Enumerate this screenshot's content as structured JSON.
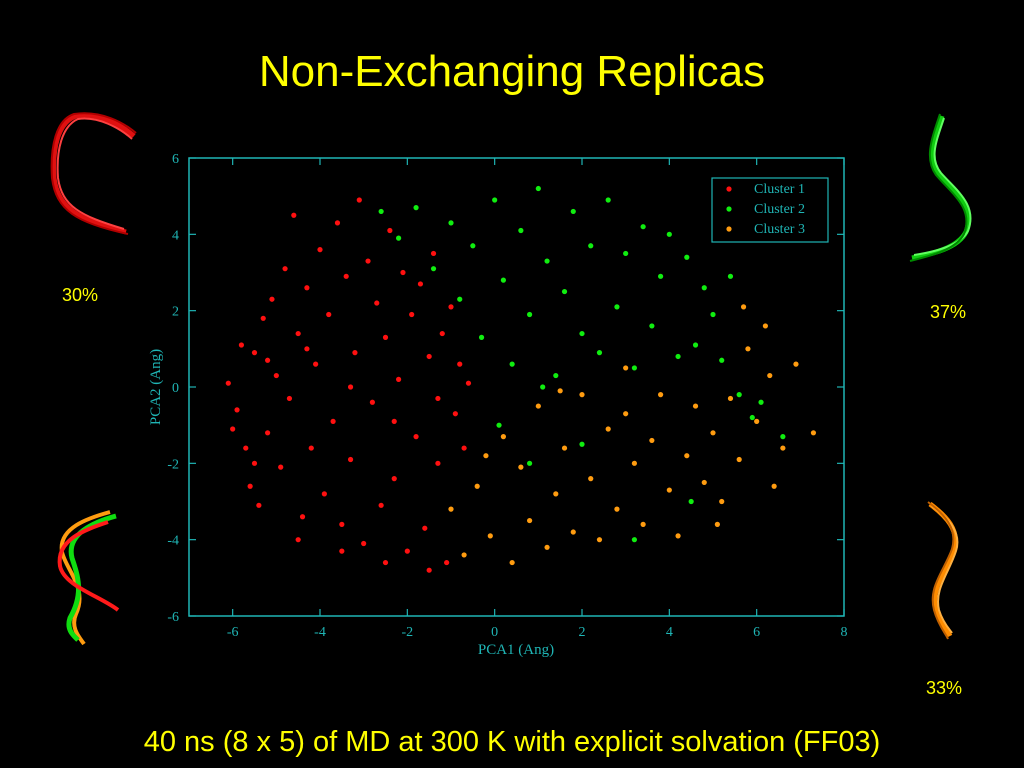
{
  "slide": {
    "title": "Non-Exchanging Replicas",
    "footer": "40 ns (8 x 5) of MD at 300 K with explicit solvation (FF03)",
    "percents": {
      "top_left": "30%",
      "top_right": "37%",
      "bottom_right": "33%"
    }
  },
  "colors": {
    "title": "#ffff00",
    "axis": "#1fb5b5",
    "cluster1": "#ff1010",
    "cluster2": "#10ee10",
    "cluster3": "#ff9c10",
    "background": "#000000"
  },
  "chart_data": {
    "type": "scatter",
    "title": "",
    "xlabel": "PCA1 (Ang)",
    "ylabel": "PCA2 (Ang)",
    "xlim": [
      -7,
      8
    ],
    "ylim": [
      -6,
      6
    ],
    "xticks": [
      -6,
      -4,
      -2,
      0,
      2,
      4,
      6,
      8
    ],
    "yticks": [
      -6,
      -4,
      -2,
      0,
      2,
      4,
      6
    ],
    "grid": false,
    "legend_position": "top-right",
    "series": [
      {
        "name": "Cluster 1",
        "color": "#ff1010",
        "points": [
          [
            -6.1,
            0.1
          ],
          [
            -5.9,
            -0.6
          ],
          [
            -5.8,
            1.1
          ],
          [
            -5.7,
            -1.6
          ],
          [
            -5.6,
            -2.6
          ],
          [
            -5.5,
            0.9
          ],
          [
            -5.4,
            -3.1
          ],
          [
            -5.3,
            1.8
          ],
          [
            -5.2,
            -1.2
          ],
          [
            -5.1,
            2.3
          ],
          [
            -5.0,
            0.3
          ],
          [
            -4.9,
            -2.1
          ],
          [
            -4.8,
            3.1
          ],
          [
            -4.7,
            -0.3
          ],
          [
            -4.6,
            4.5
          ],
          [
            -4.5,
            1.4
          ],
          [
            -4.4,
            -3.4
          ],
          [
            -4.3,
            2.6
          ],
          [
            -4.2,
            -1.6
          ],
          [
            -4.1,
            0.6
          ],
          [
            -4.0,
            3.6
          ],
          [
            -3.9,
            -2.8
          ],
          [
            -3.8,
            1.9
          ],
          [
            -3.7,
            -0.9
          ],
          [
            -3.6,
            4.3
          ],
          [
            -3.5,
            -3.6
          ],
          [
            -3.4,
            2.9
          ],
          [
            -3.3,
            -1.9
          ],
          [
            -3.2,
            0.9
          ],
          [
            -3.1,
            4.9
          ],
          [
            -3.0,
            -4.1
          ],
          [
            -2.9,
            3.3
          ],
          [
            -2.8,
            -0.4
          ],
          [
            -2.7,
            2.2
          ],
          [
            -2.6,
            -3.1
          ],
          [
            -2.5,
            1.3
          ],
          [
            -2.4,
            4.1
          ],
          [
            -2.3,
            -2.4
          ],
          [
            -2.2,
            0.2
          ],
          [
            -2.1,
            3.0
          ],
          [
            -2.0,
            -4.3
          ],
          [
            -1.9,
            1.9
          ],
          [
            -1.8,
            -1.3
          ],
          [
            -1.7,
            2.7
          ],
          [
            -1.6,
            -3.7
          ],
          [
            -1.5,
            0.8
          ],
          [
            -1.4,
            3.5
          ],
          [
            -1.3,
            -2.0
          ],
          [
            -1.2,
            1.4
          ],
          [
            -1.1,
            -4.6
          ],
          [
            -1.0,
            2.1
          ],
          [
            -0.9,
            -0.7
          ],
          [
            -0.8,
            0.6
          ],
          [
            -0.7,
            -1.6
          ],
          [
            -0.6,
            0.1
          ],
          [
            -6.0,
            -1.1
          ],
          [
            -5.5,
            -2.0
          ],
          [
            -4.5,
            -4.0
          ],
          [
            -3.5,
            -4.3
          ],
          [
            -2.5,
            -4.6
          ],
          [
            -1.5,
            -4.8
          ],
          [
            -5.2,
            0.7
          ],
          [
            -4.3,
            1.0
          ],
          [
            -3.3,
            0.0
          ],
          [
            -2.3,
            -0.9
          ],
          [
            -1.3,
            -0.3
          ]
        ]
      },
      {
        "name": "Cluster 2",
        "color": "#10ee10",
        "points": [
          [
            -2.6,
            4.6
          ],
          [
            -2.2,
            3.9
          ],
          [
            -1.8,
            4.7
          ],
          [
            -1.4,
            3.1
          ],
          [
            -1.0,
            4.3
          ],
          [
            -0.8,
            2.3
          ],
          [
            -0.5,
            3.7
          ],
          [
            -0.3,
            1.3
          ],
          [
            0.0,
            4.9
          ],
          [
            0.2,
            2.8
          ],
          [
            0.4,
            0.6
          ],
          [
            0.6,
            4.1
          ],
          [
            0.8,
            1.9
          ],
          [
            1.0,
            5.2
          ],
          [
            1.2,
            3.3
          ],
          [
            1.4,
            0.3
          ],
          [
            1.6,
            2.5
          ],
          [
            1.8,
            4.6
          ],
          [
            2.0,
            1.4
          ],
          [
            2.2,
            3.7
          ],
          [
            2.4,
            0.9
          ],
          [
            2.6,
            4.9
          ],
          [
            2.8,
            2.1
          ],
          [
            3.0,
            3.5
          ],
          [
            3.2,
            0.5
          ],
          [
            3.4,
            4.2
          ],
          [
            3.6,
            1.6
          ],
          [
            3.8,
            2.9
          ],
          [
            4.0,
            4.0
          ],
          [
            4.2,
            0.8
          ],
          [
            4.4,
            3.4
          ],
          [
            4.6,
            1.1
          ],
          [
            4.8,
            2.6
          ],
          [
            5.0,
            1.9
          ],
          [
            5.2,
            0.7
          ],
          [
            5.4,
            2.9
          ],
          [
            5.6,
            -0.2
          ],
          [
            2.0,
            -1.5
          ],
          [
            0.8,
            -2.0
          ],
          [
            3.2,
            -4.0
          ],
          [
            4.5,
            -3.0
          ],
          [
            6.1,
            -0.4
          ],
          [
            6.6,
            -1.3
          ],
          [
            5.9,
            -0.8
          ],
          [
            1.1,
            0.0
          ],
          [
            0.1,
            -1.0
          ]
        ]
      },
      {
        "name": "Cluster 3",
        "color": "#ff9c10",
        "points": [
          [
            -1.0,
            -3.2
          ],
          [
            -0.7,
            -4.4
          ],
          [
            -0.4,
            -2.6
          ],
          [
            -0.1,
            -3.9
          ],
          [
            0.2,
            -1.3
          ],
          [
            0.4,
            -4.6
          ],
          [
            0.6,
            -2.1
          ],
          [
            0.8,
            -3.5
          ],
          [
            1.0,
            -0.5
          ],
          [
            1.2,
            -4.2
          ],
          [
            1.4,
            -2.8
          ],
          [
            1.6,
            -1.6
          ],
          [
            1.8,
            -3.8
          ],
          [
            2.0,
            -0.2
          ],
          [
            2.2,
            -2.4
          ],
          [
            2.4,
            -4.0
          ],
          [
            2.6,
            -1.1
          ],
          [
            2.8,
            -3.2
          ],
          [
            3.0,
            -0.7
          ],
          [
            3.2,
            -2.0
          ],
          [
            3.4,
            -3.6
          ],
          [
            3.6,
            -1.4
          ],
          [
            3.8,
            -0.2
          ],
          [
            4.0,
            -2.7
          ],
          [
            4.2,
            -3.9
          ],
          [
            4.4,
            -1.8
          ],
          [
            4.6,
            -0.5
          ],
          [
            4.8,
            -2.5
          ],
          [
            5.0,
            -1.2
          ],
          [
            5.2,
            -3.0
          ],
          [
            5.4,
            -0.3
          ],
          [
            5.6,
            -1.9
          ],
          [
            5.8,
            1.0
          ],
          [
            6.0,
            -0.9
          ],
          [
            6.3,
            0.3
          ],
          [
            6.6,
            -1.6
          ],
          [
            6.9,
            0.6
          ],
          [
            7.3,
            -1.2
          ],
          [
            5.7,
            2.1
          ],
          [
            6.2,
            1.6
          ],
          [
            5.1,
            -3.6
          ],
          [
            3.0,
            0.5
          ],
          [
            1.5,
            -0.1
          ],
          [
            -0.2,
            -1.8
          ],
          [
            6.4,
            -2.6
          ]
        ]
      }
    ]
  }
}
